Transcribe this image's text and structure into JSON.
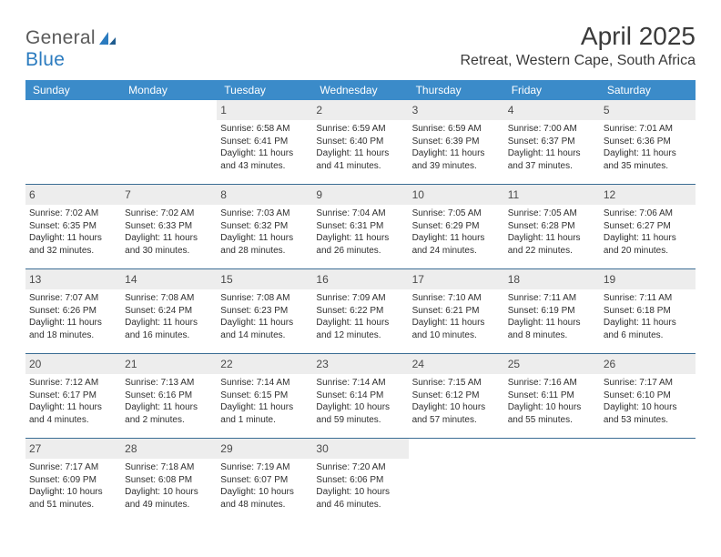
{
  "brand": {
    "word1": "General",
    "word2": "Blue"
  },
  "title": "April 2025",
  "location": "Retreat, Western Cape, South Africa",
  "colors": {
    "header_bg": "#3b8bc9",
    "header_text": "#ffffff",
    "week_divider": "#3b6d94",
    "day_bar_bg": "#ededed",
    "body_text": "#2f2f2f",
    "title_text": "#3a3a3a",
    "logo_gray": "#5a5a5a",
    "logo_blue": "#2b7bbf",
    "page_bg": "#ffffff"
  },
  "typography": {
    "title_fontsize_pt": 21,
    "location_fontsize_pt": 12,
    "dow_fontsize_pt": 9,
    "daynum_fontsize_pt": 9,
    "entry_fontsize_pt": 7.5,
    "font_family": "Arial"
  },
  "days_of_week": [
    "Sunday",
    "Monday",
    "Tuesday",
    "Wednesday",
    "Thursday",
    "Friday",
    "Saturday"
  ],
  "weeks": [
    [
      null,
      null,
      {
        "n": "1",
        "sunrise": "6:58 AM",
        "sunset": "6:41 PM",
        "daylight": "11 hours and 43 minutes."
      },
      {
        "n": "2",
        "sunrise": "6:59 AM",
        "sunset": "6:40 PM",
        "daylight": "11 hours and 41 minutes."
      },
      {
        "n": "3",
        "sunrise": "6:59 AM",
        "sunset": "6:39 PM",
        "daylight": "11 hours and 39 minutes."
      },
      {
        "n": "4",
        "sunrise": "7:00 AM",
        "sunset": "6:37 PM",
        "daylight": "11 hours and 37 minutes."
      },
      {
        "n": "5",
        "sunrise": "7:01 AM",
        "sunset": "6:36 PM",
        "daylight": "11 hours and 35 minutes."
      }
    ],
    [
      {
        "n": "6",
        "sunrise": "7:02 AM",
        "sunset": "6:35 PM",
        "daylight": "11 hours and 32 minutes."
      },
      {
        "n": "7",
        "sunrise": "7:02 AM",
        "sunset": "6:33 PM",
        "daylight": "11 hours and 30 minutes."
      },
      {
        "n": "8",
        "sunrise": "7:03 AM",
        "sunset": "6:32 PM",
        "daylight": "11 hours and 28 minutes."
      },
      {
        "n": "9",
        "sunrise": "7:04 AM",
        "sunset": "6:31 PM",
        "daylight": "11 hours and 26 minutes."
      },
      {
        "n": "10",
        "sunrise": "7:05 AM",
        "sunset": "6:29 PM",
        "daylight": "11 hours and 24 minutes."
      },
      {
        "n": "11",
        "sunrise": "7:05 AM",
        "sunset": "6:28 PM",
        "daylight": "11 hours and 22 minutes."
      },
      {
        "n": "12",
        "sunrise": "7:06 AM",
        "sunset": "6:27 PM",
        "daylight": "11 hours and 20 minutes."
      }
    ],
    [
      {
        "n": "13",
        "sunrise": "7:07 AM",
        "sunset": "6:26 PM",
        "daylight": "11 hours and 18 minutes."
      },
      {
        "n": "14",
        "sunrise": "7:08 AM",
        "sunset": "6:24 PM",
        "daylight": "11 hours and 16 minutes."
      },
      {
        "n": "15",
        "sunrise": "7:08 AM",
        "sunset": "6:23 PM",
        "daylight": "11 hours and 14 minutes."
      },
      {
        "n": "16",
        "sunrise": "7:09 AM",
        "sunset": "6:22 PM",
        "daylight": "11 hours and 12 minutes."
      },
      {
        "n": "17",
        "sunrise": "7:10 AM",
        "sunset": "6:21 PM",
        "daylight": "11 hours and 10 minutes."
      },
      {
        "n": "18",
        "sunrise": "7:11 AM",
        "sunset": "6:19 PM",
        "daylight": "11 hours and 8 minutes."
      },
      {
        "n": "19",
        "sunrise": "7:11 AM",
        "sunset": "6:18 PM",
        "daylight": "11 hours and 6 minutes."
      }
    ],
    [
      {
        "n": "20",
        "sunrise": "7:12 AM",
        "sunset": "6:17 PM",
        "daylight": "11 hours and 4 minutes."
      },
      {
        "n": "21",
        "sunrise": "7:13 AM",
        "sunset": "6:16 PM",
        "daylight": "11 hours and 2 minutes."
      },
      {
        "n": "22",
        "sunrise": "7:14 AM",
        "sunset": "6:15 PM",
        "daylight": "11 hours and 1 minute."
      },
      {
        "n": "23",
        "sunrise": "7:14 AM",
        "sunset": "6:14 PM",
        "daylight": "10 hours and 59 minutes."
      },
      {
        "n": "24",
        "sunrise": "7:15 AM",
        "sunset": "6:12 PM",
        "daylight": "10 hours and 57 minutes."
      },
      {
        "n": "25",
        "sunrise": "7:16 AM",
        "sunset": "6:11 PM",
        "daylight": "10 hours and 55 minutes."
      },
      {
        "n": "26",
        "sunrise": "7:17 AM",
        "sunset": "6:10 PM",
        "daylight": "10 hours and 53 minutes."
      }
    ],
    [
      {
        "n": "27",
        "sunrise": "7:17 AM",
        "sunset": "6:09 PM",
        "daylight": "10 hours and 51 minutes."
      },
      {
        "n": "28",
        "sunrise": "7:18 AM",
        "sunset": "6:08 PM",
        "daylight": "10 hours and 49 minutes."
      },
      {
        "n": "29",
        "sunrise": "7:19 AM",
        "sunset": "6:07 PM",
        "daylight": "10 hours and 48 minutes."
      },
      {
        "n": "30",
        "sunrise": "7:20 AM",
        "sunset": "6:06 PM",
        "daylight": "10 hours and 46 minutes."
      },
      null,
      null,
      null
    ]
  ],
  "labels": {
    "sunrise": "Sunrise:",
    "sunset": "Sunset:",
    "daylight": "Daylight:"
  }
}
